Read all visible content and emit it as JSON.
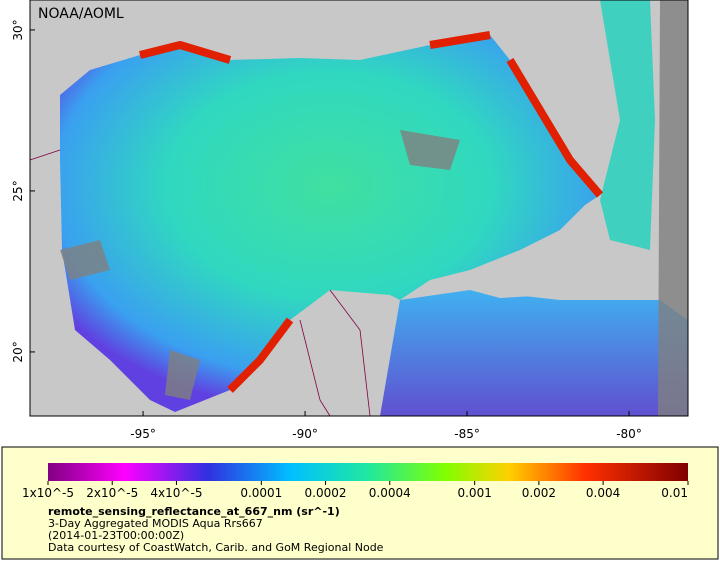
{
  "map": {
    "title": "NOAA/AOML",
    "lon_range": [
      -98.49,
      -78.18
    ],
    "lat_range": [
      18.01,
      30.93
    ],
    "lon_ticks": [
      {
        "value": -95,
        "label": "-95°"
      },
      {
        "value": -90,
        "label": "-90°"
      },
      {
        "value": -85,
        "label": "-85°"
      },
      {
        "value": -80,
        "label": "-80°"
      }
    ],
    "lat_ticks": [
      {
        "value": 20,
        "label": "20°"
      },
      {
        "value": 25,
        "label": "25°"
      },
      {
        "value": 30,
        "label": "30°"
      }
    ]
  },
  "colorbar": {
    "scale": "log",
    "range": [
      1e-05,
      0.01
    ],
    "ticks": [
      {
        "value": 1e-05,
        "label": "1x10^-5"
      },
      {
        "value": 2e-05,
        "label": "2x10^-5"
      },
      {
        "value": 4e-05,
        "label": "4x10^-5"
      },
      0.0001,
      0.0002,
      0.0004,
      0.001,
      0.002,
      0.004,
      0.01
    ],
    "variable": "remote_sensing_reflectance_at_667_nm (sr^-1)",
    "lines": [
      "3-Day Aggregated MODIS Aqua Rrs667",
      "(2014-01-23T00:00:00Z)",
      "Data courtesy of CoastWatch, Carib. and GoM Regional Node"
    ]
  }
}
